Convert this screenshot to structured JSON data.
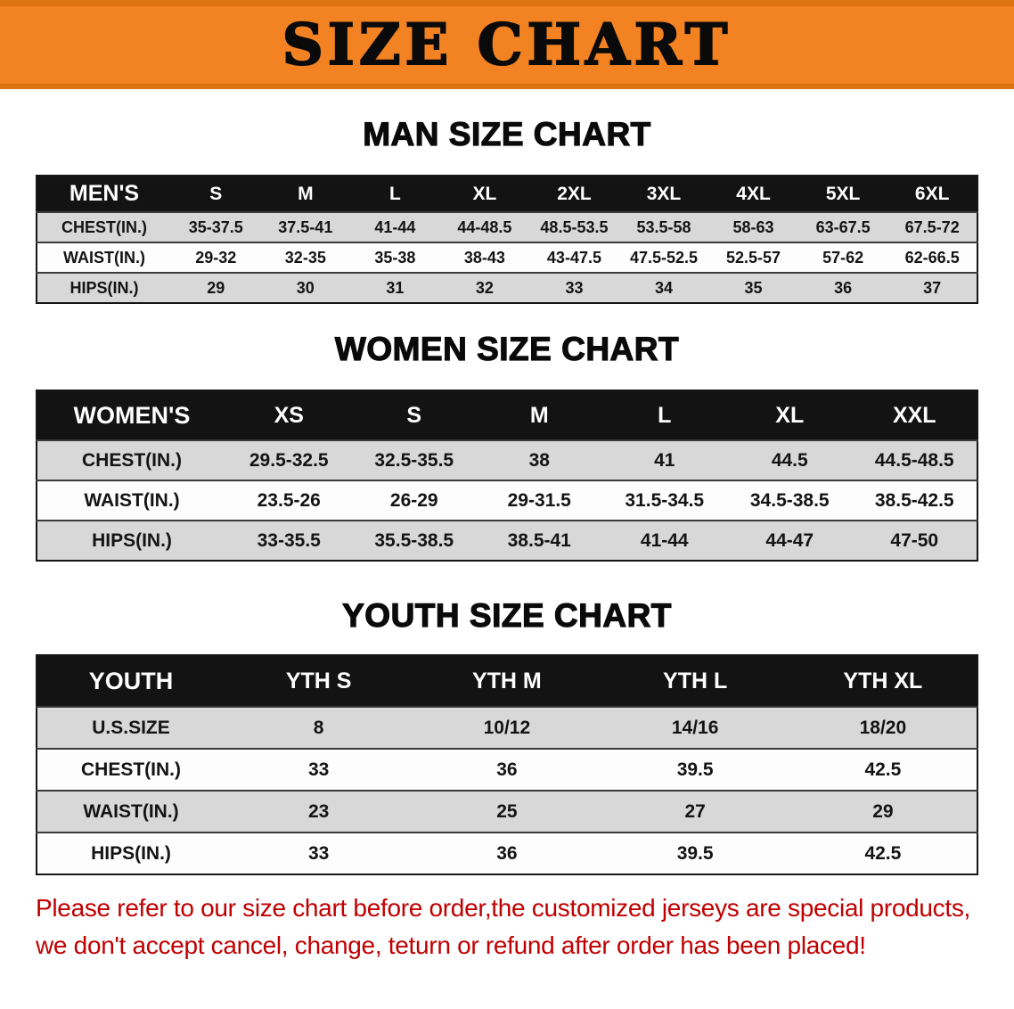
{
  "banner": {
    "title": "SIZE CHART",
    "bg_color": "#F28222"
  },
  "sections": [
    {
      "heading": "MAN SIZE CHART",
      "table": {
        "header": [
          "MEN'S",
          "S",
          "M",
          "L",
          "XL",
          "2XL",
          "3XL",
          "4XL",
          "5XL",
          "6XL"
        ],
        "rows": [
          [
            "CHEST(IN.)",
            "35-37.5",
            "37.5-41",
            "41-44",
            "44-48.5",
            "48.5-53.5",
            "53.5-58",
            "58-63",
            "63-67.5",
            "67.5-72"
          ],
          [
            "WAIST(IN.)",
            "29-32",
            "32-35",
            "35-38",
            "38-43",
            "43-47.5",
            "47.5-52.5",
            "52.5-57",
            "57-62",
            "62-66.5"
          ],
          [
            "HIPS(IN.)",
            "29",
            "30",
            "31",
            "32",
            "33",
            "34",
            "35",
            "36",
            "37"
          ]
        ]
      }
    },
    {
      "heading": "WOMEN SIZE CHART",
      "table": {
        "header": [
          "WOMEN'S",
          "XS",
          "S",
          "M",
          "L",
          "XL",
          "XXL"
        ],
        "rows": [
          [
            "CHEST(IN.)",
            "29.5-32.5",
            "32.5-35.5",
            "38",
            "41",
            "44.5",
            "44.5-48.5"
          ],
          [
            "WAIST(IN.)",
            "23.5-26",
            "26-29",
            "29-31.5",
            "31.5-34.5",
            "34.5-38.5",
            "38.5-42.5"
          ],
          [
            "HIPS(IN.)",
            "33-35.5",
            "35.5-38.5",
            "38.5-41",
            "41-44",
            "44-47",
            "47-50"
          ]
        ]
      }
    },
    {
      "heading": "YOUTH SIZE CHART",
      "table": {
        "header": [
          "YOUTH",
          "YTH S",
          "YTH M",
          "YTH L",
          "YTH XL"
        ],
        "rows": [
          [
            "U.S.SIZE",
            "8",
            "10/12",
            "14/16",
            "18/20"
          ],
          [
            "CHEST(IN.)",
            "33",
            "36",
            "39.5",
            "42.5"
          ],
          [
            "WAIST(IN.)",
            "23",
            "25",
            "27",
            "29"
          ],
          [
            "HIPS(IN.)",
            "33",
            "36",
            "39.5",
            "42.5"
          ]
        ]
      }
    }
  ],
  "disclaimer": {
    "line1": "Please refer to our size chart before order,the customized jerseys are special products,",
    "line2": "we don't accept cancel, change, teturn or refund after order has been placed!",
    "text_color": "#C00000"
  }
}
